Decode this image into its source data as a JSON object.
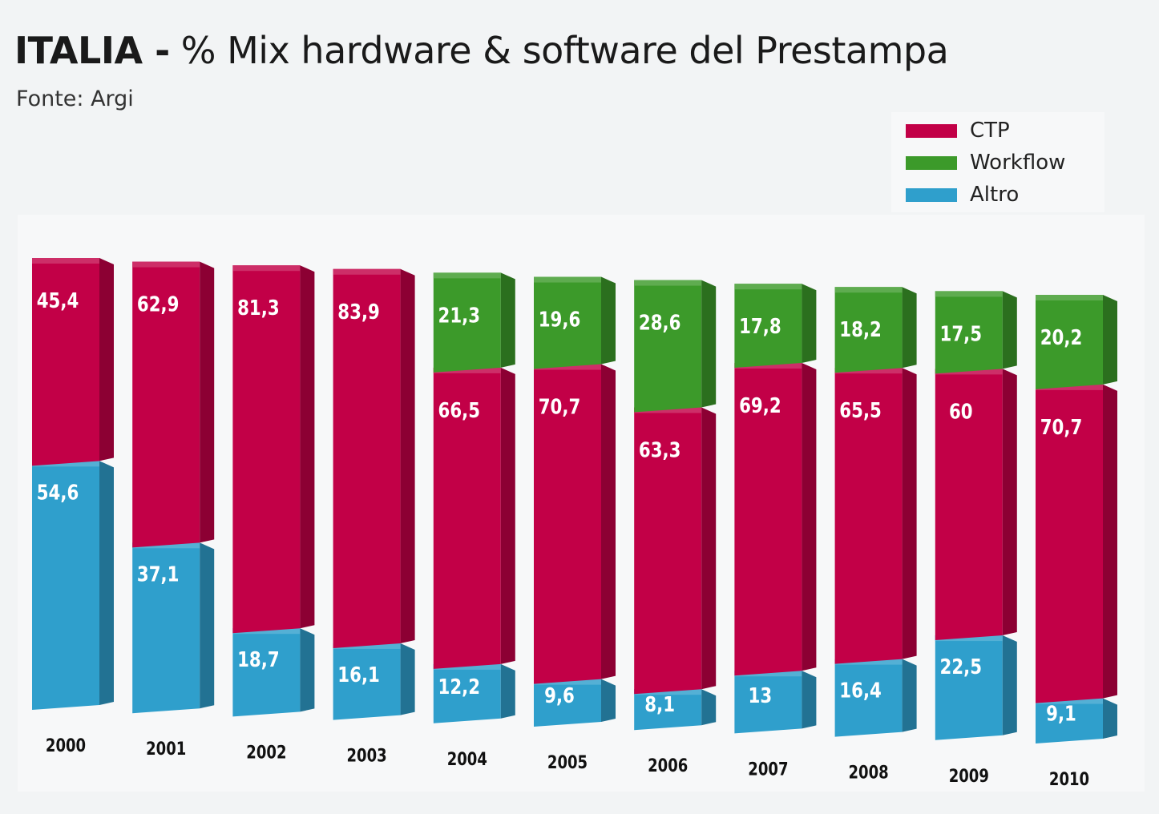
{
  "header": {
    "title_bold": "ITALIA -",
    "title_rest": "% Mix hardware & software del Prestampa",
    "source": "Fonte: Argi"
  },
  "colors": {
    "CTP": "#c20047",
    "Workflow": "#3c9a2a",
    "Altro": "#2f9fcc"
  },
  "chart_data": {
    "type": "bar",
    "stacked": true,
    "style": "3d",
    "title": "ITALIA - % Mix hardware & software del Prestampa",
    "subtitle": "Fonte: Argi",
    "categories": [
      "2000",
      "2001",
      "2002",
      "2003",
      "2004",
      "2005",
      "2006",
      "2007",
      "2008",
      "2009",
      "2010"
    ],
    "series": [
      {
        "name": "Altro",
        "values": [
          54.6,
          37.1,
          18.7,
          16.1,
          12.2,
          9.6,
          8.1,
          13,
          16.4,
          22.5,
          9.1
        ],
        "labels": [
          "54,6",
          "37,1",
          "18,7",
          "16,1",
          "12,2",
          "9,6",
          "8,1",
          "13",
          "16,4",
          "22,5",
          "9,1"
        ]
      },
      {
        "name": "CTP",
        "values": [
          45.4,
          62.9,
          81.3,
          83.9,
          66.5,
          70.7,
          63.3,
          69.2,
          65.5,
          60,
          70.7
        ],
        "labels": [
          "45,4",
          "62,9",
          "81,3",
          "83,9",
          "66,5",
          "70,7",
          "63,3",
          "69,2",
          "65,5",
          "60",
          "70,7"
        ]
      },
      {
        "name": "Workflow",
        "values": [
          null,
          null,
          null,
          null,
          21.3,
          19.6,
          28.6,
          17.8,
          18.2,
          17.5,
          20.2
        ],
        "labels": [
          "",
          "",
          "",
          "",
          "21,3",
          "19,6",
          "28,6",
          "17,8",
          "18,2",
          "17,5",
          "20,2"
        ]
      }
    ],
    "ylim": [
      0,
      100
    ],
    "legend_position": "top-right",
    "legend": [
      "CTP",
      "Workflow",
      "Altro"
    ],
    "grid": false
  }
}
